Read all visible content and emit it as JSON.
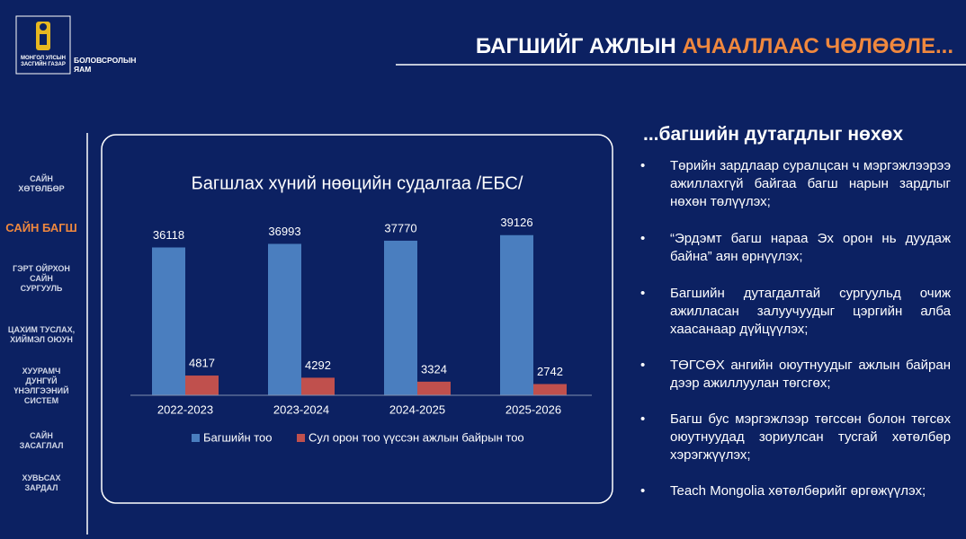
{
  "header": {
    "logo_lines": [
      "МОНГОЛ УЛСЫН",
      "ЗАСГИЙН ГАЗАР"
    ],
    "ministry": "БОЛОВСРОЛЫН ЯАМ",
    "title_white": "БАГШИЙГ АЖЛЫН",
    "title_orange": "АЧААЛЛААС ЧӨЛӨӨЛЕ..."
  },
  "sidebar": {
    "items": [
      "САЙН ХӨТӨЛБӨР",
      "САЙН БАГШ",
      "ГЭРТ ОЙРХОН САЙН СУРГУУЛЬ",
      "ЦАХИМ ТУСЛАХ, ХИЙМЭЛ ОЮУН",
      "ХУУРАМЧ ДУНГҮЙ ҮНЭЛГЭЭНИЙ СИСТЕМ",
      "САЙН ЗАСАГЛАЛ",
      "ХУВЬСАХ ЗАРДАЛ"
    ],
    "active": 1
  },
  "chart_data": {
    "type": "bar",
    "title": "Багшлах хүний нөөцийн судалгаа /ЕБС/",
    "categories": [
      "2022-2023",
      "2023-2024",
      "2024-2025",
      "2025-2026"
    ],
    "series": [
      {
        "name": "Багшийн тоо",
        "color": "#4a7ebf",
        "values": [
          36118,
          36993,
          37770,
          39126
        ]
      },
      {
        "name": "Сул орон тоо үүссэн ажлын байрын тоо",
        "color": "#c0504d",
        "values": [
          4817,
          4292,
          3324,
          2742
        ]
      }
    ],
    "ylim": [
      0,
      45000
    ]
  },
  "panel": {
    "heading": "...багшийн дутагдлыг нөхөх",
    "bullets": [
      "Төрийн зардлаар суралцсан ч мэргэжлээрээ ажиллахгүй байгаа багш нарын зардлыг нөхөн төлүүлэх;",
      "“Эрдэмт багш нараа Эх орон нь дуудаж байна” аян өрнүүлэх;",
      "Багшийн дутагдалтай сургуульд очиж ажилласан залуучуудыг цэргийн алба хаасанаар дүйцүүлэх;",
      "ТӨГСӨХ ангийн оюутнуудыг ажлын байран дээр ажиллуулан төгсгөх;",
      "Багш бус мэргэжлээр төгссөн болон төгсөх оюутнуудад зориулсан тусгай хөтөлбөр хэрэгжүүлэх;",
      "Teach Mongolia хөтөлбөрийг өргөжүүлэх;"
    ]
  }
}
